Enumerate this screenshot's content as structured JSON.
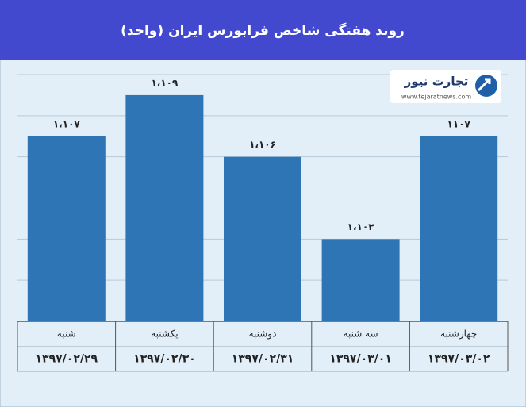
{
  "chart_data": {
    "type": "bar",
    "title": "روند هفتگی شاخص فرابورس ایران (واحد)",
    "categories": [
      "شنبه",
      "یکشنبه",
      "دوشنبه",
      "سه شنبه",
      "چهارشنبه"
    ],
    "dates": [
      "۱۳۹۷/۰۲/۲۹",
      "۱۳۹۷/۰۲/۳۰",
      "۱۳۹۷/۰۲/۳۱",
      "۱۳۹۷/۰۳/۰۱",
      "۱۳۹۷/۰۳/۰۲"
    ],
    "values": [
      1107,
      1109,
      1106,
      1102,
      1107
    ],
    "value_labels": [
      "۱،۱۰۷",
      "۱،۱۰۹",
      "۱،۱۰۶",
      "۱،۱۰۲",
      "۱۱۰۷"
    ],
    "color": "#2e75b6",
    "ylim": [
      1098,
      1110
    ],
    "yticks": [
      1098,
      1100,
      1102,
      1104,
      1106,
      1108,
      1110
    ],
    "grid": true,
    "watermark": {
      "name": "تجارت نیوز",
      "url": "www.tejaratnews.com"
    }
  }
}
